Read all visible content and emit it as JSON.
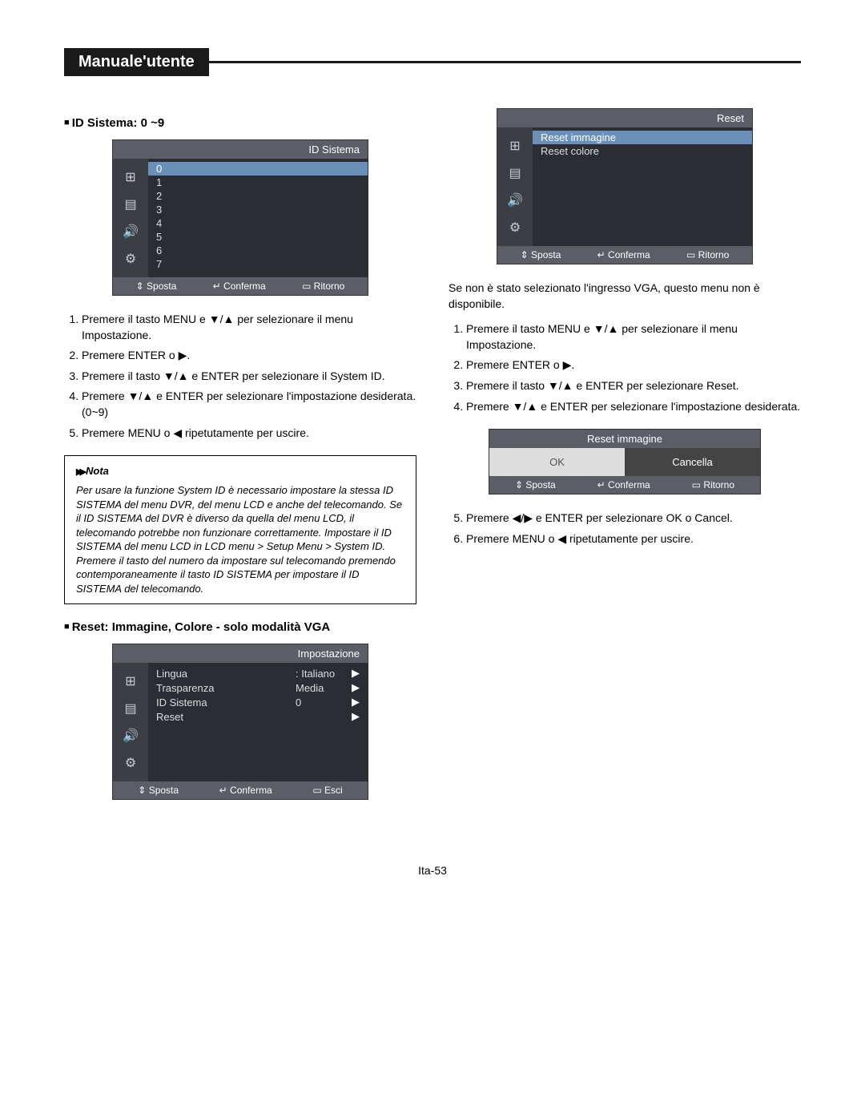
{
  "header": {
    "title": "Manuale'utente"
  },
  "left": {
    "heading1": "ID Sistema: 0 ~9",
    "osd1": {
      "title": "ID Sistema",
      "items": [
        "0",
        "1",
        "2",
        "3",
        "4",
        "5",
        "6",
        "7"
      ],
      "selected": 0,
      "footer": {
        "a": "Sposta",
        "b": "Conferma",
        "c": "Ritorno"
      }
    },
    "steps1": [
      "Premere il tasto MENU e ▼/▲ per selezionare il menu Impostazione.",
      "Premere ENTER o ▶.",
      "Premere il tasto ▼/▲ e ENTER per selezionare il System ID.",
      "Premere ▼/▲ e ENTER per selezionare l'impostazione desiderata. (0~9)",
      "Premere MENU o ◀ ripetutamente per uscire."
    ],
    "note_label": "Nota",
    "note_text": "Per usare la funzione System ID è necessario impostare la stessa ID SISTEMA del menu DVR, del menu LCD e anche del telecomando. Se il ID SISTEMA del DVR è diverso da quella del menu LCD, il telecomando potrebbe non funzionare correttamente. Impostare il ID SISTEMA del menu LCD in LCD menu > Setup Menu > System ID. Premere il tasto del numero da impostare sul telecomando premendo contemporaneamente il tasto ID SISTEMA per impostare il ID SISTEMA del telecomando.",
    "heading2": "Reset: Immagine, Colore - solo modalità VGA",
    "osd2": {
      "title": "Impostazione",
      "rows": [
        {
          "label": "Lingua",
          "value": ": Italiano",
          "arrow": "▶"
        },
        {
          "label": "Trasparenza",
          "value": "Media",
          "arrow": "▶"
        },
        {
          "label": "ID Sistema",
          "value": "0",
          "arrow": "▶"
        },
        {
          "label": "Reset",
          "value": "",
          "arrow": "▶"
        }
      ],
      "footer": {
        "a": "Sposta",
        "b": "Conferma",
        "c": "Esci"
      }
    }
  },
  "right": {
    "osd1": {
      "title": "Reset",
      "rows": [
        {
          "label": "Reset immagine",
          "selected": true
        },
        {
          "label": "Reset colore",
          "selected": false
        }
      ],
      "footer": {
        "a": "Sposta",
        "b": "Conferma",
        "c": "Ritorno"
      }
    },
    "para1": "Se non è stato selezionato l'ingresso VGA, questo menu non è disponibile.",
    "steps1": [
      "Premere il tasto MENU e ▼/▲ per selezionare il menu Impostazione.",
      "Premere ENTER o ▶.",
      "Premere il tasto ▼/▲ e ENTER per selezionare Reset.",
      "Premere ▼/▲ e ENTER per selezionare l'impostazione desiderata."
    ],
    "confirm": {
      "title": "Reset immagine",
      "ok": "OK",
      "cancel": "Cancella",
      "footer": {
        "a": "Sposta",
        "b": "Conferma",
        "c": "Ritorno"
      }
    },
    "steps2_start": 5,
    "steps2": [
      "Premere ◀/▶ e ENTER per selezionare OK o Cancel.",
      "Premere MENU o ◀ ripetutamente per uscire."
    ]
  },
  "page": "Ita-53",
  "icons": [
    "⊞",
    "▤",
    "🔊",
    "⚙"
  ],
  "colors": {
    "header_bg": "#5b5e66",
    "body_bg": "#2a2d33",
    "sidebar_bg": "#3b3e45",
    "selected_bg": "#6a8fb8",
    "text": "#ffffff"
  }
}
